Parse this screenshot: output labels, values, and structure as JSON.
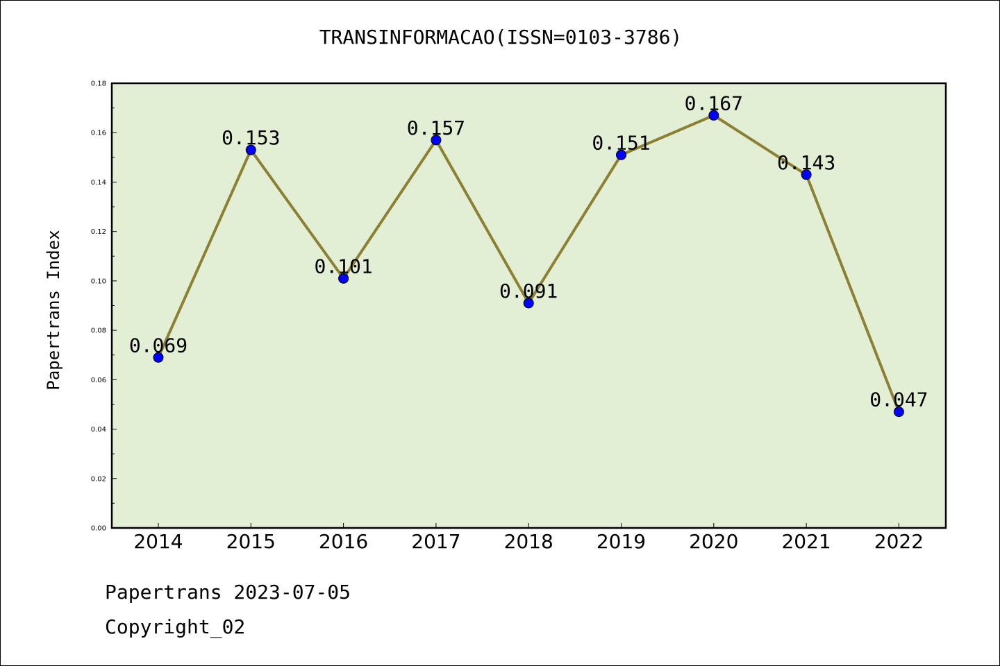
{
  "chart_data": {
    "type": "line",
    "title": "TRANSINFORMACAO(ISSN=0103-3786)",
    "xlabel": "",
    "ylabel": "Papertrans Index",
    "categories": [
      "2014",
      "2015",
      "2016",
      "2017",
      "2018",
      "2019",
      "2020",
      "2021",
      "2022"
    ],
    "values": [
      0.069,
      0.153,
      0.101,
      0.157,
      0.091,
      0.151,
      0.167,
      0.143,
      0.047
    ],
    "data_labels": [
      "0.069",
      "0.153",
      "0.101",
      "0.157",
      "0.091",
      "0.151",
      "0.167",
      "0.143",
      "0.047"
    ],
    "ylim": [
      0.0,
      0.18
    ],
    "yticks": [
      "0.00",
      "0.02",
      "0.04",
      "0.06",
      "0.08",
      "0.10",
      "0.12",
      "0.14",
      "0.16",
      "0.18"
    ],
    "grid": false,
    "legend": "none",
    "colors": {
      "plot_background": "#e2efd5",
      "line": "#8b8033",
      "marker": "#0000ff"
    }
  },
  "footer": {
    "date_text": "Papertrans 2023-07-05",
    "copyright_text": "Copyright_02"
  }
}
